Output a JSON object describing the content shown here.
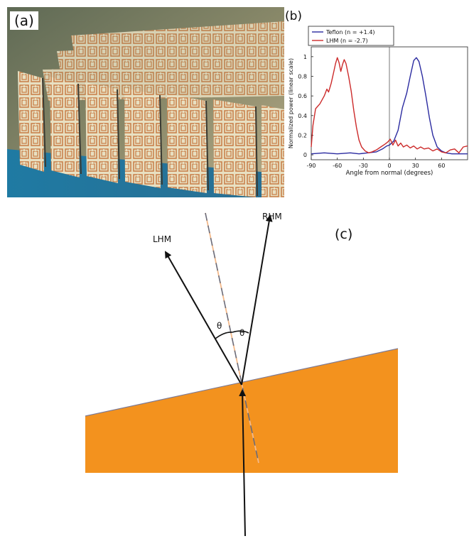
{
  "panels": {
    "a": {
      "label": "(a)"
    },
    "b": {
      "label": "(b)"
    },
    "c": {
      "label": "(c)"
    }
  },
  "chart_data": {
    "type": "line",
    "xlabel": "Angle from normal (degrees)",
    "ylabel": "Normalized power (linear scale)",
    "xlim": [
      -90,
      90
    ],
    "ylim": [
      -0.05,
      1.1
    ],
    "xticks": [
      "-90",
      "-60",
      "-30",
      "0",
      "30",
      "60"
    ],
    "yticks": [
      "0",
      "0.2",
      "0.4",
      "0.6",
      "0.8",
      "1"
    ],
    "legend_position": "top-left",
    "vertical_line_at": 0,
    "series": [
      {
        "name": "Teflon (n = +1.4)",
        "color": "#2b2ba0",
        "points": [
          [
            -90,
            0.01
          ],
          [
            -75,
            0.02
          ],
          [
            -60,
            0.01
          ],
          [
            -45,
            0.02
          ],
          [
            -35,
            0.01
          ],
          [
            -25,
            0.02
          ],
          [
            -15,
            0.03
          ],
          [
            -8,
            0.06
          ],
          [
            -3,
            0.09
          ],
          [
            0,
            0.1
          ],
          [
            5,
            0.14
          ],
          [
            10,
            0.25
          ],
          [
            15,
            0.48
          ],
          [
            20,
            0.63
          ],
          [
            24,
            0.8
          ],
          [
            28,
            0.96
          ],
          [
            31,
            0.99
          ],
          [
            34,
            0.95
          ],
          [
            38,
            0.8
          ],
          [
            42,
            0.6
          ],
          [
            46,
            0.38
          ],
          [
            50,
            0.2
          ],
          [
            55,
            0.08
          ],
          [
            60,
            0.04
          ],
          [
            65,
            0.02
          ],
          [
            72,
            0.01
          ],
          [
            80,
            0.01
          ],
          [
            90,
            0.01
          ]
        ]
      },
      {
        "name": "LHM (n = -2.7)",
        "color": "#cc2a2a",
        "points": [
          [
            -90,
            0.08
          ],
          [
            -88,
            0.3
          ],
          [
            -85,
            0.47
          ],
          [
            -80,
            0.52
          ],
          [
            -75,
            0.6
          ],
          [
            -72,
            0.67
          ],
          [
            -70,
            0.64
          ],
          [
            -67,
            0.73
          ],
          [
            -64,
            0.85
          ],
          [
            -62,
            0.93
          ],
          [
            -60,
            0.99
          ],
          [
            -58,
            0.94
          ],
          [
            -56,
            0.85
          ],
          [
            -54,
            0.92
          ],
          [
            -52,
            0.97
          ],
          [
            -50,
            0.93
          ],
          [
            -47,
            0.8
          ],
          [
            -44,
            0.65
          ],
          [
            -41,
            0.45
          ],
          [
            -38,
            0.28
          ],
          [
            -35,
            0.15
          ],
          [
            -32,
            0.08
          ],
          [
            -28,
            0.04
          ],
          [
            -24,
            0.02
          ],
          [
            -20,
            0.03
          ],
          [
            -15,
            0.05
          ],
          [
            -10,
            0.08
          ],
          [
            -5,
            0.11
          ],
          [
            -2,
            0.13
          ],
          [
            1,
            0.16
          ],
          [
            4,
            0.1
          ],
          [
            7,
            0.15
          ],
          [
            10,
            0.09
          ],
          [
            13,
            0.12
          ],
          [
            16,
            0.08
          ],
          [
            20,
            0.1
          ],
          [
            24,
            0.07
          ],
          [
            28,
            0.09
          ],
          [
            32,
            0.06
          ],
          [
            36,
            0.08
          ],
          [
            40,
            0.06
          ],
          [
            45,
            0.07
          ],
          [
            50,
            0.04
          ],
          [
            55,
            0.06
          ],
          [
            60,
            0.03
          ],
          [
            65,
            0.02
          ],
          [
            70,
            0.05
          ],
          [
            75,
            0.06
          ],
          [
            80,
            0.02
          ],
          [
            85,
            0.08
          ],
          [
            90,
            0.09
          ]
        ]
      }
    ]
  },
  "diagram": {
    "labels": {
      "lhm": "LHM",
      "rhm": "RHM"
    },
    "angle_symbol": "θ",
    "prism_color": "#f3921e"
  }
}
